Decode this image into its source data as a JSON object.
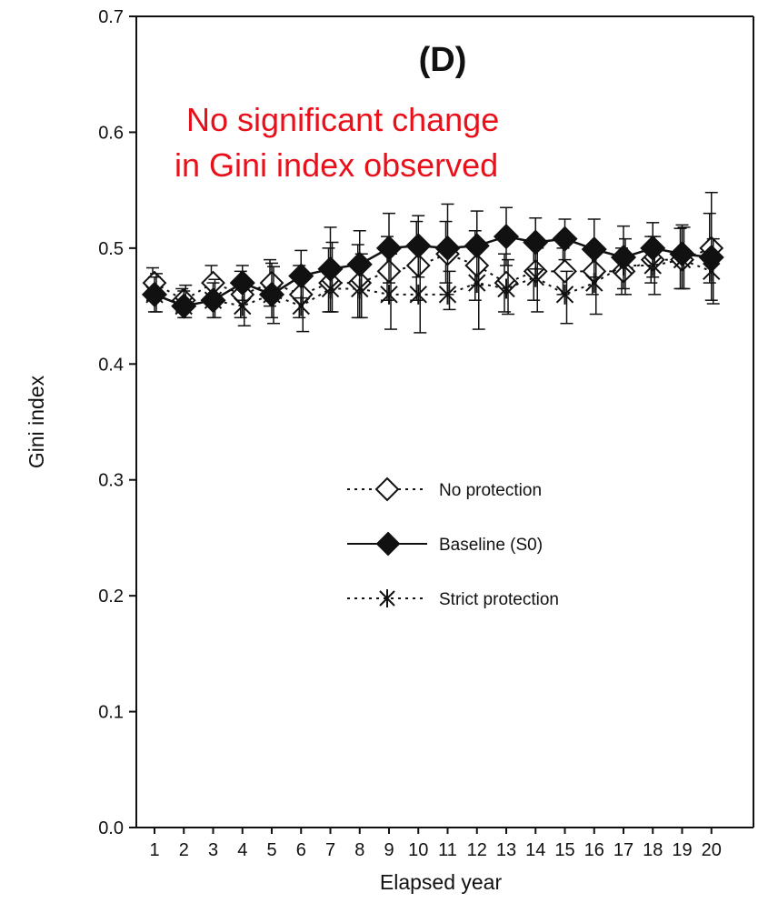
{
  "chart_data": {
    "type": "line",
    "panel_label": "(D)",
    "annotation": [
      "No significant change",
      "in Gini index observed"
    ],
    "xlabel": "Elapsed year",
    "ylabel": "Gini index",
    "categories": [
      "1",
      "2",
      "3",
      "4",
      "5",
      "6",
      "7",
      "8",
      "9",
      "10",
      "11",
      "12",
      "13",
      "14",
      "15",
      "16",
      "17",
      "18",
      "19",
      "20"
    ],
    "ylim": [
      0,
      0.7
    ],
    "yticks": [
      "0.0",
      "0.1",
      "0.2",
      "0.3",
      "0.4",
      "0.5",
      "0.6",
      "0.7"
    ],
    "grid": false,
    "legend_position": "center",
    "series": [
      {
        "name": "No protection",
        "line_style": "dotted",
        "marker": "open-diamond",
        "values": [
          0.47,
          0.455,
          0.47,
          0.46,
          0.47,
          0.46,
          0.47,
          0.47,
          0.48,
          0.485,
          0.495,
          0.485,
          0.47,
          0.48,
          0.48,
          0.48,
          0.48,
          0.49,
          0.49,
          0.5
        ],
        "err_low": [
          0.455,
          0.445,
          0.455,
          0.44,
          0.45,
          0.44,
          0.445,
          0.44,
          0.455,
          0.455,
          0.47,
          0.455,
          0.445,
          0.455,
          0.46,
          0.46,
          0.46,
          0.47,
          0.465,
          0.47
        ],
        "err_high": [
          0.483,
          0.465,
          0.485,
          0.48,
          0.49,
          0.485,
          0.5,
          0.503,
          0.51,
          0.523,
          0.523,
          0.515,
          0.495,
          0.505,
          0.5,
          0.5,
          0.5,
          0.51,
          0.517,
          0.53
        ]
      },
      {
        "name": "Baseline (S0)",
        "line_style": "solid",
        "marker": "filled-diamond",
        "values": [
          0.46,
          0.45,
          0.455,
          0.47,
          0.46,
          0.476,
          0.482,
          0.486,
          0.5,
          0.502,
          0.5,
          0.502,
          0.51,
          0.505,
          0.508,
          0.499,
          0.492,
          0.5,
          0.495,
          0.492
        ],
        "err_low": [
          0.445,
          0.44,
          0.44,
          0.455,
          0.44,
          0.457,
          0.445,
          0.44,
          0.47,
          0.475,
          0.46,
          0.468,
          0.485,
          0.482,
          0.49,
          0.475,
          0.465,
          0.475,
          0.465,
          0.455
        ],
        "err_high": [
          0.475,
          0.463,
          0.47,
          0.485,
          0.487,
          0.498,
          0.518,
          0.515,
          0.53,
          0.528,
          0.538,
          0.532,
          0.535,
          0.526,
          0.525,
          0.525,
          0.519,
          0.522,
          0.52,
          0.548
        ]
      },
      {
        "name": "Strict protection",
        "line_style": "dotted",
        "marker": "asterisk",
        "values": [
          0.46,
          0.45,
          0.455,
          0.45,
          0.46,
          0.45,
          0.465,
          0.465,
          0.46,
          0.46,
          0.46,
          0.47,
          0.465,
          0.475,
          0.46,
          0.47,
          0.485,
          0.485,
          0.49,
          0.48
        ],
        "err_low": [
          0.445,
          0.44,
          0.44,
          0.433,
          0.435,
          0.428,
          0.445,
          0.44,
          0.43,
          0.427,
          0.447,
          0.43,
          0.443,
          0.445,
          0.435,
          0.443,
          0.46,
          0.46,
          0.465,
          0.452
        ],
        "err_high": [
          0.478,
          0.468,
          0.473,
          0.47,
          0.484,
          0.478,
          0.505,
          0.495,
          0.495,
          0.5,
          0.48,
          0.505,
          0.49,
          0.5,
          0.48,
          0.498,
          0.508,
          0.51,
          0.518,
          0.508
        ]
      }
    ]
  }
}
